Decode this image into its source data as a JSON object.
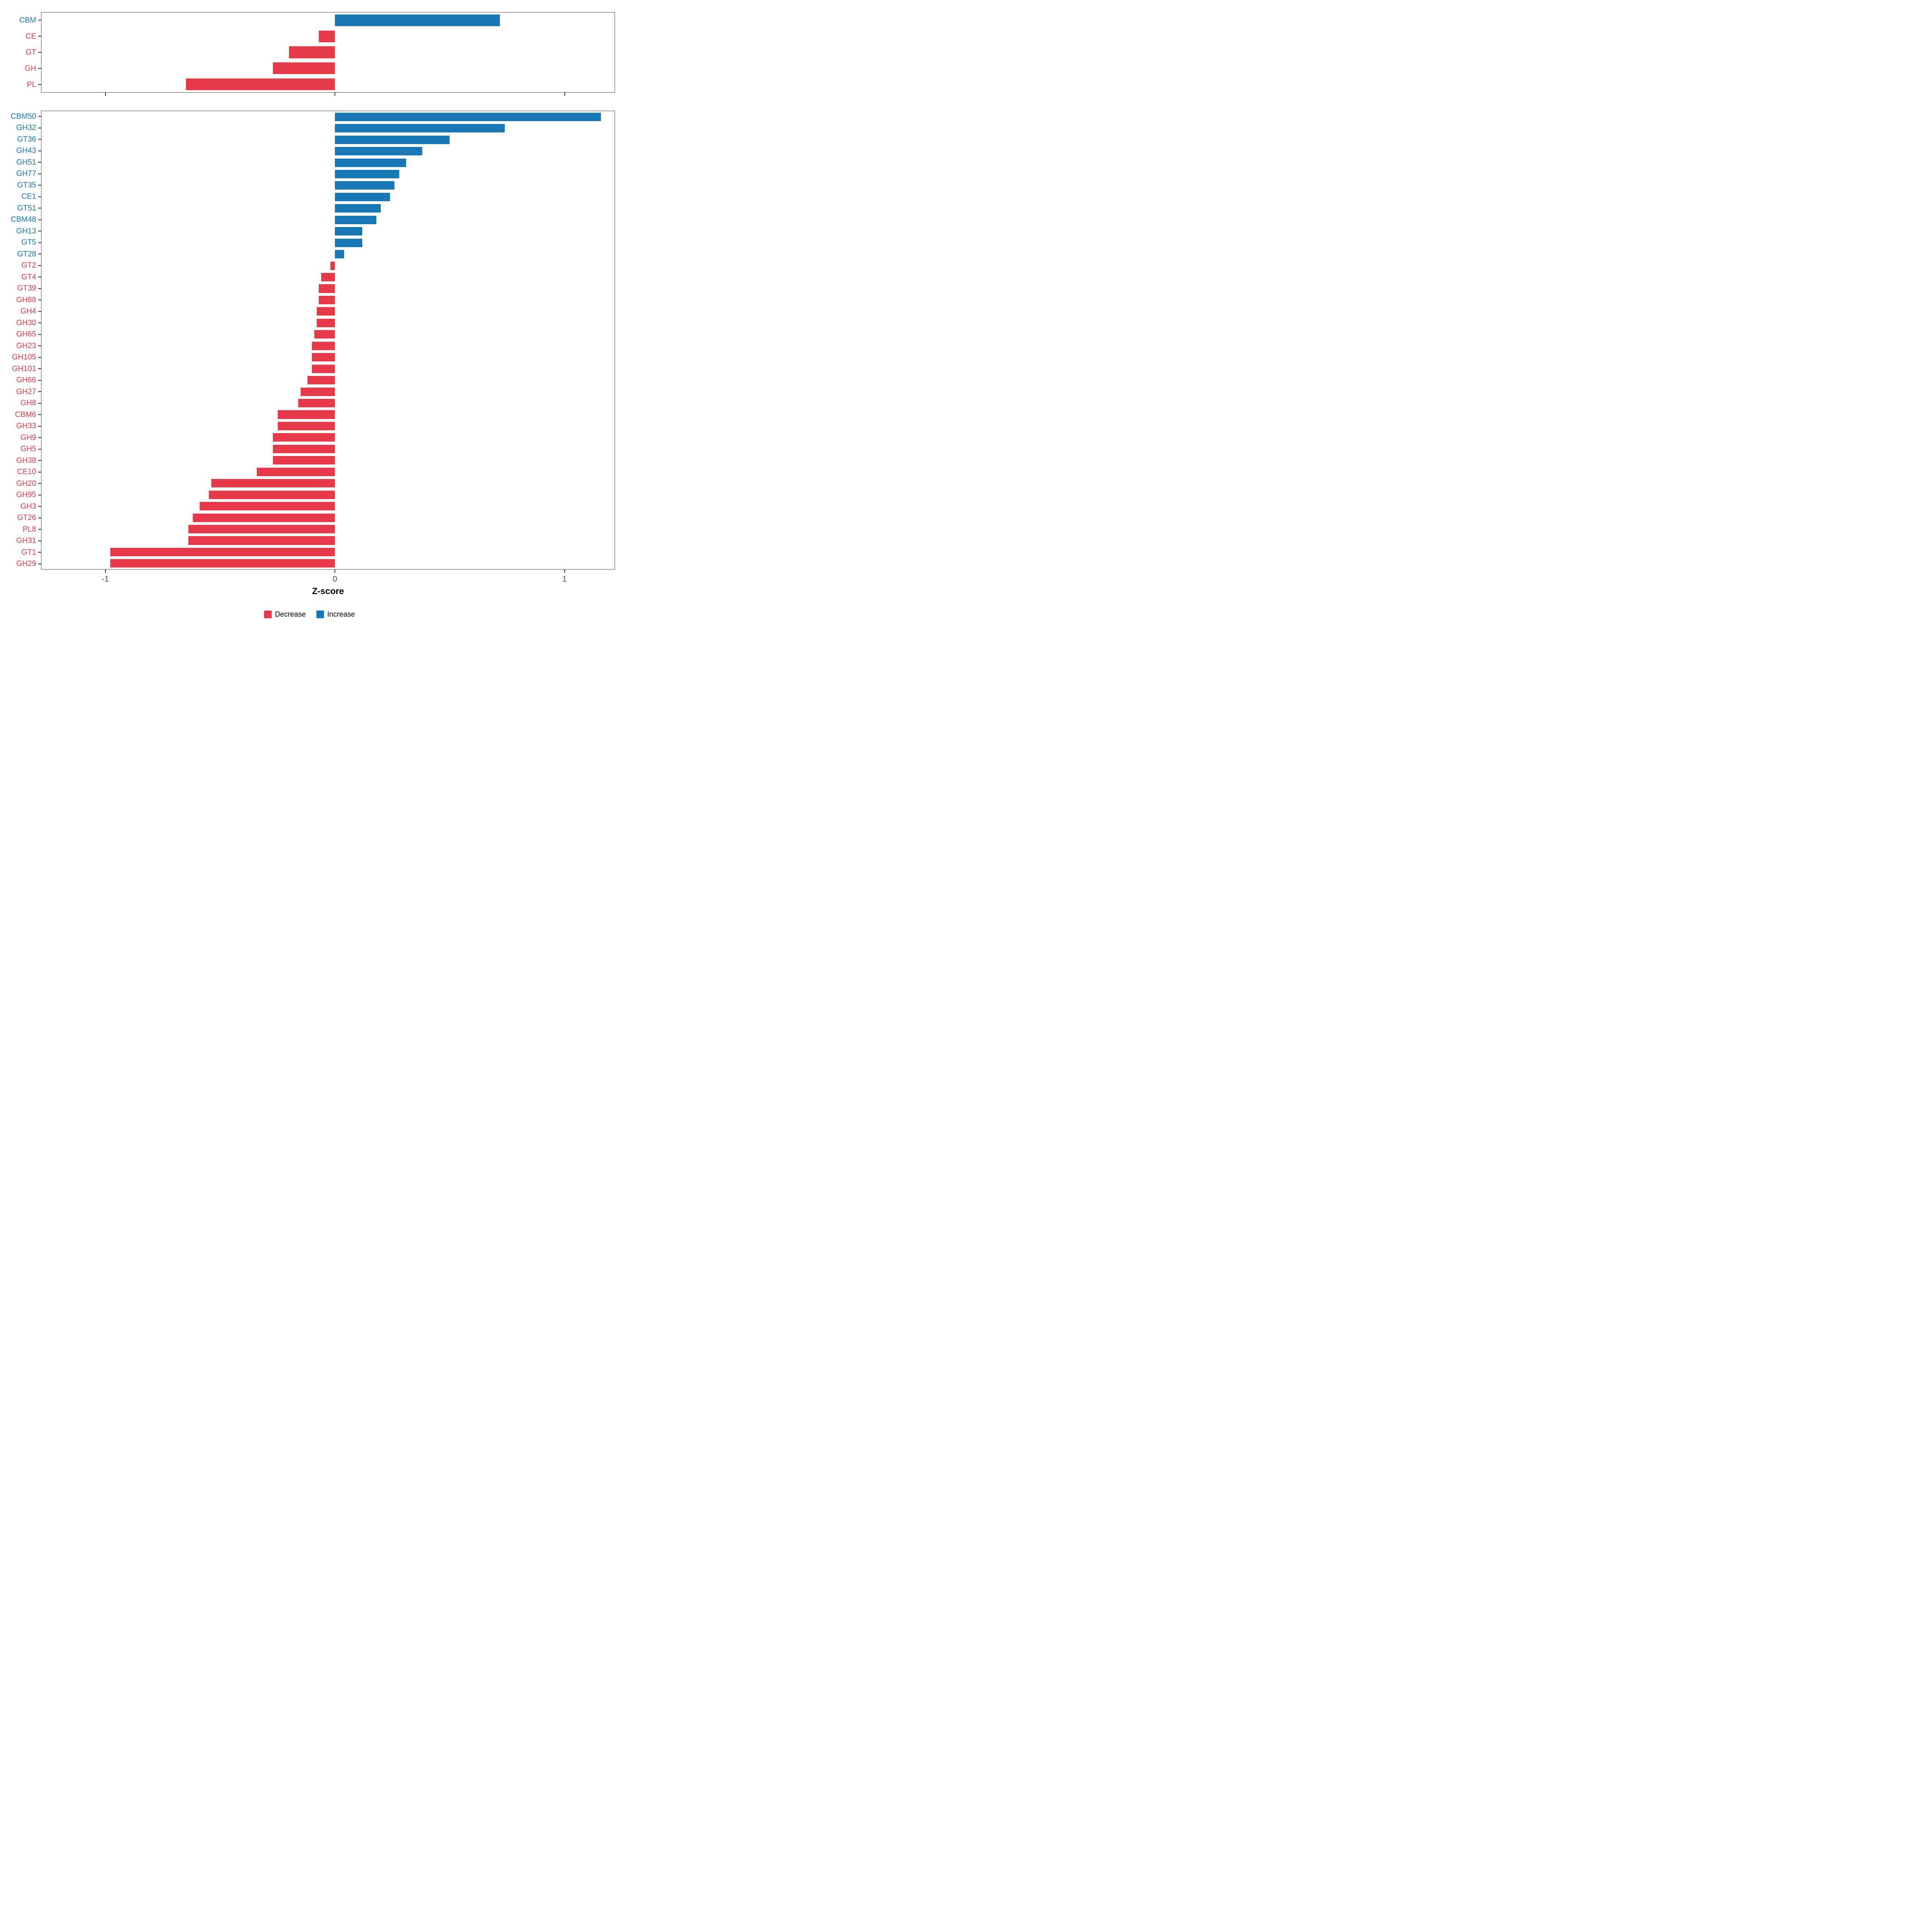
{
  "colors": {
    "decrease": "#E8394A",
    "increase": "#1878B5"
  },
  "axis": {
    "xlabel": "Z-score"
  },
  "legend": {
    "items": [
      {
        "label": "Decrease",
        "key": "decrease"
      },
      {
        "label": "Increase",
        "key": "increase"
      }
    ]
  },
  "chart_data": [
    {
      "type": "bar",
      "orientation": "horizontal",
      "panel": "top",
      "title": "",
      "xlabel": "",
      "ylabel": "",
      "xlim": [
        -1.28,
        1.22
      ],
      "xticks": [
        -1,
        0,
        1
      ],
      "show_tick_labels": false,
      "grid": false,
      "categories": [
        "CBM",
        "CE",
        "GT",
        "GH",
        "PL"
      ],
      "values": [
        0.72,
        -0.07,
        -0.2,
        -0.27,
        -0.65
      ]
    },
    {
      "type": "bar",
      "orientation": "horizontal",
      "panel": "bottom",
      "title": "",
      "xlabel": "Z-score",
      "ylabel": "",
      "xlim": [
        -1.28,
        1.22
      ],
      "xticks": [
        -1,
        0,
        1
      ],
      "show_tick_labels": true,
      "grid": false,
      "categories": [
        "CBM50",
        "GH32",
        "GT36",
        "GH43",
        "GH51",
        "GH77",
        "GT35",
        "CE1",
        "GT51",
        "CBM48",
        "GH13",
        "GT5",
        "GT28",
        "GT2",
        "GT4",
        "GT39",
        "GH88",
        "GH4",
        "GH30",
        "GH65",
        "GH23",
        "GH105",
        "GH101",
        "GH66",
        "GH27",
        "GH8",
        "CBM6",
        "GH33",
        "GH9",
        "GH5",
        "GH38",
        "CE10",
        "GH20",
        "GH95",
        "GH3",
        "GT26",
        "PL8",
        "GH31",
        "GT1",
        "GH29"
      ],
      "values": [
        1.16,
        0.74,
        0.5,
        0.38,
        0.31,
        0.28,
        0.26,
        0.24,
        0.2,
        0.18,
        0.12,
        0.12,
        0.04,
        -0.02,
        -0.06,
        -0.07,
        -0.07,
        -0.08,
        -0.08,
        -0.09,
        -0.1,
        -0.1,
        -0.1,
        -0.12,
        -0.15,
        -0.16,
        -0.25,
        -0.25,
        -0.27,
        -0.27,
        -0.27,
        -0.34,
        -0.54,
        -0.55,
        -0.59,
        -0.62,
        -0.64,
        -0.64,
        -0.98,
        -0.98
      ]
    }
  ]
}
